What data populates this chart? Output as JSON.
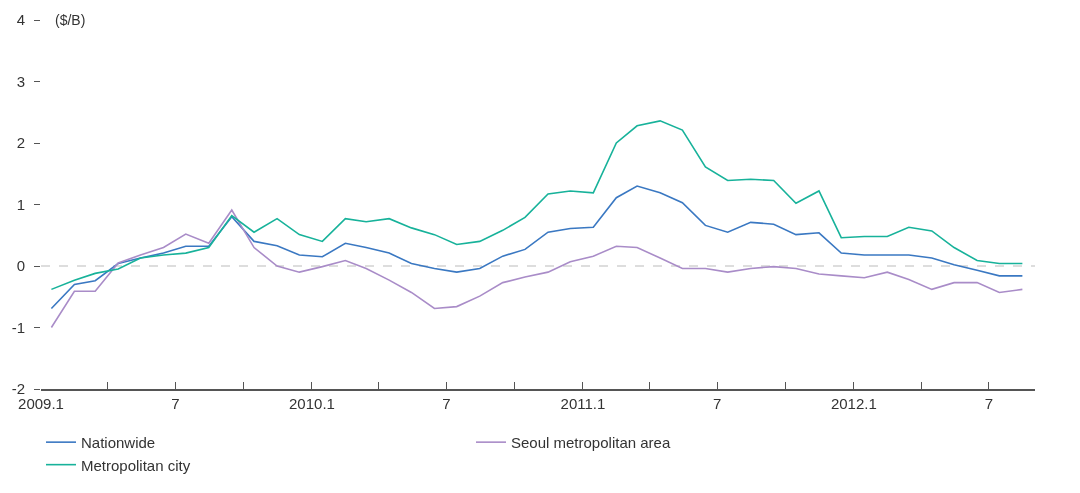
{
  "chart_data": {
    "type": "line",
    "ylabel": "($/B)",
    "x": [
      "2009-01-15",
      "2009-02-15",
      "2009-03-15",
      "2009-04-15",
      "2009-05-15",
      "2009-06-15",
      "2009-07-15",
      "2009-08-15",
      "2009-09-15",
      "2009-10-15",
      "2009-11-15",
      "2009-12-15",
      "2010-01-15",
      "2010-02-15",
      "2010-03-15",
      "2010-04-15",
      "2010-05-15",
      "2010-06-15",
      "2010-07-15",
      "2010-08-15",
      "2010-09-15",
      "2010-10-15",
      "2010-11-15",
      "2010-12-15",
      "2011-01-15",
      "2011-02-15",
      "2011-03-15",
      "2011-04-15",
      "2011-05-15",
      "2011-06-15",
      "2011-07-15",
      "2011-08-15",
      "2011-09-15",
      "2011-10-15",
      "2011-11-15",
      "2011-12-15",
      "2012-01-15",
      "2012-02-15",
      "2012-03-15",
      "2012-04-15",
      "2012-05-15",
      "2012-06-15",
      "2012-07-15",
      "2012-08-15"
    ],
    "series": [
      {
        "name": "Nationwide",
        "color": "#3a78c2",
        "values": [
          -0.69,
          -0.3,
          -0.24,
          0.04,
          0.13,
          0.21,
          0.32,
          0.32,
          0.8,
          0.4,
          0.33,
          0.18,
          0.15,
          0.37,
          0.3,
          0.21,
          0.04,
          -0.04,
          -0.1,
          -0.04,
          0.16,
          0.27,
          0.55,
          0.61,
          0.63,
          1.11,
          1.3,
          1.19,
          1.03,
          0.66,
          0.55,
          0.71,
          0.68,
          0.51,
          0.54,
          0.21,
          0.18,
          0.18,
          0.18,
          0.13,
          0.02,
          -0.07,
          -0.16,
          -0.16
        ]
      },
      {
        "name": "Seoul metropolitan area",
        "color": "#a98cc8",
        "values": [
          -1.0,
          -0.41,
          -0.41,
          0.05,
          0.18,
          0.3,
          0.52,
          0.37,
          0.91,
          0.3,
          0.0,
          -0.1,
          -0.01,
          0.09,
          -0.04,
          -0.23,
          -0.43,
          -0.69,
          -0.66,
          -0.49,
          -0.27,
          -0.18,
          -0.1,
          0.07,
          0.16,
          0.32,
          0.3,
          0.13,
          -0.04,
          -0.04,
          -0.1,
          -0.04,
          -0.01,
          -0.04,
          -0.13,
          -0.16,
          -0.19,
          -0.1,
          -0.22,
          -0.38,
          -0.27,
          -0.27,
          -0.43,
          -0.38
        ]
      },
      {
        "name": "Metropolitan city",
        "color": "#17b29a",
        "values": [
          -0.38,
          -0.23,
          -0.12,
          -0.05,
          0.13,
          0.18,
          0.21,
          0.3,
          0.82,
          0.55,
          0.77,
          0.51,
          0.4,
          0.77,
          0.72,
          0.77,
          0.62,
          0.51,
          0.35,
          0.4,
          0.58,
          0.79,
          1.17,
          1.22,
          1.19,
          2.0,
          2.28,
          2.36,
          2.21,
          1.61,
          1.39,
          1.41,
          1.39,
          1.02,
          1.22,
          0.46,
          0.48,
          0.48,
          0.63,
          0.57,
          0.3,
          0.09,
          0.04,
          0.04
        ]
      }
    ],
    "xlim": [
      "2009-01-01",
      "2012-09-01"
    ],
    "xticks": [
      {
        "value": "2009-01-01",
        "label": "2009.1"
      },
      {
        "value": "2009-04-01",
        "label": null
      },
      {
        "value": "2009-07-01",
        "label": "7"
      },
      {
        "value": "2009-10-01",
        "label": null
      },
      {
        "value": "2010-01-01",
        "label": "2010.1"
      },
      {
        "value": "2010-04-01",
        "label": null
      },
      {
        "value": "2010-07-01",
        "label": "7"
      },
      {
        "value": "2010-10-01",
        "label": null
      },
      {
        "value": "2011-01-01",
        "label": "2011.1"
      },
      {
        "value": "2011-04-01",
        "label": null
      },
      {
        "value": "2011-07-01",
        "label": "7"
      },
      {
        "value": "2011-10-01",
        "label": null
      },
      {
        "value": "2012-01-01",
        "label": "2012.1"
      },
      {
        "value": "2012-04-01",
        "label": null
      },
      {
        "value": "2012-07-01",
        "label": "7"
      }
    ],
    "ylim": [
      -2,
      4
    ],
    "yticks": [
      -2,
      -1,
      0,
      1,
      2,
      3,
      4
    ],
    "ref_lines": [
      {
        "axis": "y",
        "value": 0,
        "color": "#bbbbbb",
        "line_style": "dashed"
      }
    ],
    "grid": false,
    "legend": "bottom"
  }
}
